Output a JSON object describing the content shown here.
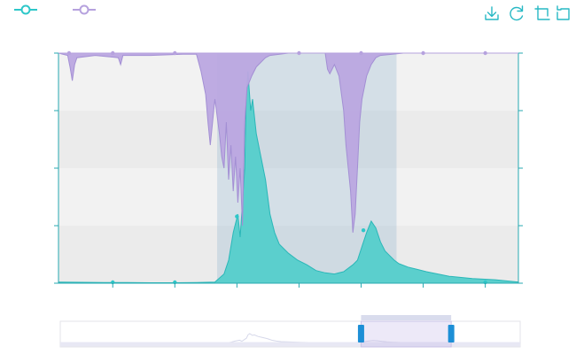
{
  "colors": {
    "flow": "#2ec7c9",
    "flow_fill": "#5bcfcd",
    "flow_line": "#2ab7b8",
    "rain": "#b6a2de",
    "rain_fill": "#bba7e0",
    "rain_line": "#a38fd4",
    "axis": "#27a8b0",
    "band_light": "#f2f2f2",
    "band_dark": "#ebebeb",
    "selection": "rgba(135,175,205,0.28)",
    "toolbox": "#27b8c4",
    "zoom_handle": "#1d8fd6",
    "zoom_window": "rgba(167,183,204,0.35)"
  },
  "legend": [
    {
      "name": "legend-flow",
      "icon": "circle-line-icon",
      "color": "#2ec7c9"
    },
    {
      "name": "legend-rainfall",
      "icon": "circle-line-icon",
      "color": "#b6a2de"
    }
  ],
  "toolbox": [
    {
      "name": "save-image-button",
      "icon": "download-icon"
    },
    {
      "name": "restore-button",
      "icon": "refresh-icon"
    },
    {
      "name": "data-zoom-button",
      "icon": "crop-icon"
    },
    {
      "name": "zoom-reset-button",
      "icon": "back-icon"
    }
  ],
  "chart_data": {
    "type": "area",
    "title": "",
    "x_range": [
      0,
      1
    ],
    "y_left_range": [
      0,
      1
    ],
    "y_right_range": [
      0,
      1
    ],
    "grid": true,
    "highlight_range": [
      0.345,
      0.735
    ],
    "series": [
      {
        "name": "",
        "axis": "left",
        "direction": "up",
        "points": [
          [
            0,
            0.005
          ],
          [
            0.05,
            0.004
          ],
          [
            0.1,
            0.003
          ],
          [
            0.15,
            0.003
          ],
          [
            0.2,
            0.002
          ],
          [
            0.25,
            0.002
          ],
          [
            0.3,
            0.003
          ],
          [
            0.34,
            0.005
          ],
          [
            0.36,
            0.04
          ],
          [
            0.37,
            0.1
          ],
          [
            0.38,
            0.22
          ],
          [
            0.39,
            0.3
          ],
          [
            0.395,
            0.2
          ],
          [
            0.4,
            0.35
          ],
          [
            0.405,
            0.5
          ],
          [
            0.408,
            0.8
          ],
          [
            0.412,
            0.92
          ],
          [
            0.418,
            0.75
          ],
          [
            0.422,
            0.8
          ],
          [
            0.43,
            0.65
          ],
          [
            0.44,
            0.55
          ],
          [
            0.45,
            0.45
          ],
          [
            0.46,
            0.3
          ],
          [
            0.47,
            0.22
          ],
          [
            0.48,
            0.17
          ],
          [
            0.5,
            0.13
          ],
          [
            0.52,
            0.1
          ],
          [
            0.54,
            0.08
          ],
          [
            0.56,
            0.055
          ],
          [
            0.58,
            0.045
          ],
          [
            0.6,
            0.04
          ],
          [
            0.62,
            0.05
          ],
          [
            0.64,
            0.08
          ],
          [
            0.65,
            0.1
          ],
          [
            0.66,
            0.16
          ],
          [
            0.67,
            0.22
          ],
          [
            0.68,
            0.27
          ],
          [
            0.69,
            0.24
          ],
          [
            0.7,
            0.18
          ],
          [
            0.71,
            0.14
          ],
          [
            0.72,
            0.12
          ],
          [
            0.73,
            0.1
          ],
          [
            0.74,
            0.085
          ],
          [
            0.76,
            0.07
          ],
          [
            0.78,
            0.06
          ],
          [
            0.8,
            0.05
          ],
          [
            0.85,
            0.03
          ],
          [
            0.9,
            0.02
          ],
          [
            0.95,
            0.015
          ],
          [
            1,
            0.005
          ]
        ]
      },
      {
        "name": "",
        "axis": "right",
        "direction": "down",
        "points": [
          [
            0,
            0
          ],
          [
            0.02,
            0.01
          ],
          [
            0.025,
            0.06
          ],
          [
            0.03,
            0.12
          ],
          [
            0.035,
            0.05
          ],
          [
            0.04,
            0.02
          ],
          [
            0.08,
            0.01
          ],
          [
            0.13,
            0.02
          ],
          [
            0.135,
            0.05
          ],
          [
            0.14,
            0.01
          ],
          [
            0.2,
            0.01
          ],
          [
            0.27,
            0.005
          ],
          [
            0.3,
            0.005
          ],
          [
            0.31,
            0.08
          ],
          [
            0.32,
            0.18
          ],
          [
            0.325,
            0.3
          ],
          [
            0.33,
            0.4
          ],
          [
            0.34,
            0.2
          ],
          [
            0.35,
            0.35
          ],
          [
            0.355,
            0.45
          ],
          [
            0.36,
            0.5
          ],
          [
            0.365,
            0.3
          ],
          [
            0.37,
            0.55
          ],
          [
            0.375,
            0.4
          ],
          [
            0.38,
            0.6
          ],
          [
            0.385,
            0.45
          ],
          [
            0.39,
            0.65
          ],
          [
            0.395,
            0.5
          ],
          [
            0.4,
            0.75
          ],
          [
            0.405,
            0.3
          ],
          [
            0.41,
            0.15
          ],
          [
            0.42,
            0.1
          ],
          [
            0.43,
            0.06
          ],
          [
            0.44,
            0.04
          ],
          [
            0.45,
            0.02
          ],
          [
            0.46,
            0.01
          ],
          [
            0.5,
            0
          ],
          [
            0.58,
            0
          ],
          [
            0.585,
            0.07
          ],
          [
            0.59,
            0.09
          ],
          [
            0.6,
            0.05
          ],
          [
            0.61,
            0.1
          ],
          [
            0.62,
            0.25
          ],
          [
            0.625,
            0.4
          ],
          [
            0.63,
            0.5
          ],
          [
            0.635,
            0.6
          ],
          [
            0.64,
            0.78
          ],
          [
            0.645,
            0.7
          ],
          [
            0.65,
            0.5
          ],
          [
            0.655,
            0.3
          ],
          [
            0.66,
            0.2
          ],
          [
            0.665,
            0.15
          ],
          [
            0.67,
            0.1
          ],
          [
            0.68,
            0.05
          ],
          [
            0.69,
            0.02
          ],
          [
            0.7,
            0.01
          ],
          [
            0.75,
            0
          ],
          [
            1,
            0
          ]
        ]
      }
    ]
  },
  "zoom": {
    "window": [
      0.654,
      0.85
    ]
  }
}
